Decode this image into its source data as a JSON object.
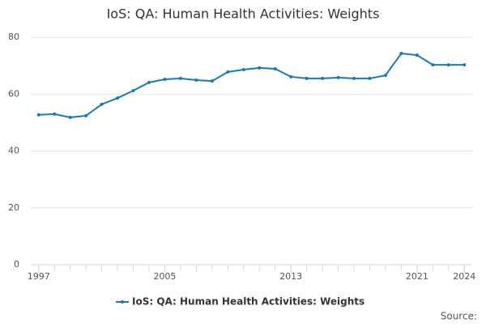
{
  "chart_data": {
    "type": "line",
    "title": "IoS: QA: Human Health Activities: Weights",
    "x": [
      1997,
      1998,
      1999,
      2000,
      2001,
      2002,
      2003,
      2004,
      2005,
      2006,
      2007,
      2008,
      2009,
      2010,
      2011,
      2012,
      2013,
      2014,
      2015,
      2016,
      2017,
      2018,
      2019,
      2020,
      2021,
      2022,
      2023,
      2024
    ],
    "series": [
      {
        "name": "IoS: QA: Human Health Activities: Weights",
        "color": "#1a7ab8",
        "values": [
          52.7,
          53.0,
          51.8,
          52.4,
          56.4,
          58.6,
          61.2,
          64.1,
          65.2,
          65.5,
          64.9,
          64.6,
          67.8,
          68.6,
          69.2,
          68.9,
          66.1,
          65.5,
          65.5,
          65.8,
          65.5,
          65.5,
          66.6,
          74.3,
          73.7,
          70.3,
          70.3,
          70.3
        ]
      }
    ],
    "xlim": [
      1996.5,
      2024.5
    ],
    "xticks": [
      1997,
      2005,
      2013,
      2021,
      2024
    ],
    "ylim": [
      0,
      80
    ],
    "yticks": [
      0,
      20,
      40,
      60,
      80
    ],
    "grid": true,
    "legend": "bottom",
    "source": "Source:"
  }
}
